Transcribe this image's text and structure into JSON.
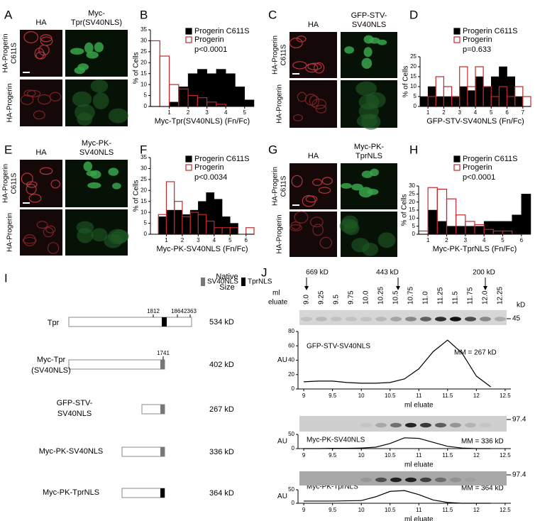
{
  "microscopy": [
    {
      "letter": "A",
      "columns": [
        [
          "HA"
        ],
        [
          "Myc-",
          "Tpr(SV40NLS)"
        ]
      ],
      "rows": [
        [
          "HA-Progerin",
          "C611S"
        ],
        [
          "HA-Progerin"
        ]
      ]
    },
    {
      "letter": "C",
      "columns": [
        [
          "HA"
        ],
        [
          "GFP-STV-",
          "SV40NLS"
        ]
      ],
      "rows": [
        [
          "HA-Progerin",
          "C611S"
        ],
        [
          "HA-Progerin"
        ]
      ]
    },
    {
      "letter": "E",
      "columns": [
        [
          "HA"
        ],
        [
          "Myc-PK-",
          "SV40NLS"
        ]
      ],
      "rows": [
        [
          "HA-Progerin",
          "C611S"
        ],
        [
          "HA-Progerin"
        ]
      ]
    },
    {
      "letter": "G",
      "columns": [
        [
          "HA"
        ],
        [
          "Myc-PK-",
          "TprNLS"
        ]
      ],
      "rows": [
        [
          "HA-Progerin",
          "C611S"
        ],
        [
          "HA-Progerin"
        ]
      ]
    }
  ],
  "diagram": {
    "letter": "I",
    "legend": [
      "SV40NLS",
      "TprNLS"
    ],
    "size_header": [
      "Native",
      "Size"
    ],
    "constructs": [
      {
        "name": [
          "Tpr"
        ],
        "size": "534 kD",
        "positions": [
          "1812",
          "1864",
          "2363"
        ]
      },
      {
        "name": [
          "Myc-Tpr",
          "(SV40NLS)"
        ],
        "size": "402 kD",
        "positions": [
          "1741"
        ]
      },
      {
        "name": [
          "GFP-STV-",
          "SV40NLS"
        ],
        "size": "267 kD",
        "positions": []
      },
      {
        "name": [
          "Myc-PK-SV40NLS"
        ],
        "size": "336 kD",
        "positions": []
      },
      {
        "name": [
          "Myc-PK-TprNLS"
        ],
        "size": "364 kD",
        "positions": []
      }
    ]
  },
  "gel": {
    "letter": "J",
    "markers": [
      "669 kD",
      "443 kD",
      "200 kD"
    ],
    "eluate_label": [
      "ml",
      "eluate"
    ],
    "fractions": [
      "9.0",
      "9.25",
      "9.5",
      "9.75",
      "10.0",
      "10.25",
      "10.5",
      "10.75",
      "11.0",
      "11.25",
      "11.5",
      "11.75",
      "12.0",
      "12.25"
    ],
    "unit": "kD",
    "sizes": [
      "45",
      "97.4",
      "97.4"
    ]
  },
  "chart_data": [
    {
      "type": "histogram",
      "panel": "B",
      "bins": [
        0,
        0.5,
        1,
        1.5,
        2,
        2.5,
        3,
        3.5,
        4,
        4.5,
        5,
        5.5
      ],
      "series": [
        {
          "name": "Progerin C611S",
          "color": "#000000",
          "fill": true,
          "values": [
            0,
            0,
            2,
            9,
            15,
            17,
            15,
            17,
            15,
            9,
            3
          ]
        },
        {
          "name": "Progerin",
          "color": "#c0282d",
          "fill": false,
          "values": [
            30,
            23,
            10,
            8,
            5,
            4,
            2,
            1,
            0,
            0,
            0
          ]
        }
      ],
      "annotation": "p<0.0001",
      "xlabel": "Myc-Tpr(SV40NLS) (Fn/Fc)",
      "ylabel": "% of Cells",
      "xlim": [
        0,
        5.5
      ],
      "xticks": [
        1,
        2,
        3,
        4,
        5
      ],
      "ylim": [
        0,
        35
      ],
      "yticks": [
        0,
        5,
        10,
        15,
        20,
        25,
        30,
        35
      ]
    },
    {
      "type": "histogram",
      "panel": "D",
      "bins": [
        0.5,
        1,
        1.5,
        2,
        2.5,
        3,
        3.5,
        4,
        4.5,
        5,
        5.5,
        6,
        6.5,
        7,
        7.5
      ],
      "series": [
        {
          "name": "Progerin C611S",
          "color": "#000000",
          "fill": true,
          "values": [
            5,
            10,
            5,
            5,
            5,
            10,
            8,
            15,
            10,
            15,
            20,
            15,
            5,
            0
          ]
        },
        {
          "name": "Progerin",
          "color": "#c0282d",
          "fill": false,
          "values": [
            0,
            5,
            15,
            10,
            5,
            20,
            10,
            20,
            10,
            5,
            10,
            5,
            10,
            5
          ]
        }
      ],
      "annotation": "p=0.633",
      "xlabel": "GFP-STV-SV40NLS (Fn/Fc)",
      "ylabel": "% of Cells",
      "xlim": [
        0.5,
        7.5
      ],
      "xticks": [
        1,
        2,
        3,
        4,
        5,
        6,
        7
      ],
      "ylim": [
        0,
        25
      ],
      "yticks": [
        0,
        5,
        10,
        15,
        20,
        25
      ]
    },
    {
      "type": "histogram",
      "panel": "F",
      "bins": [
        0,
        0.5,
        1,
        1.5,
        2,
        2.5,
        3,
        3.5,
        4,
        4.5,
        5,
        5.5,
        6,
        6.5
      ],
      "series": [
        {
          "name": "Progerin C611S",
          "color": "#000000",
          "fill": true,
          "values": [
            0,
            8,
            11,
            11,
            9,
            11,
            15,
            19,
            16,
            8,
            5,
            0,
            0
          ]
        },
        {
          "name": "Progerin",
          "color": "#c0282d",
          "fill": false,
          "values": [
            0,
            9,
            24,
            15,
            8,
            10,
            9,
            6,
            3,
            3,
            3,
            0,
            3
          ]
        }
      ],
      "annotation": "p<0.0034",
      "xlabel": "Myc-PK-SV40NLS (Fn/Fc)",
      "ylabel": "% of Cells",
      "xlim": [
        0,
        6.5
      ],
      "xticks": [
        1,
        2,
        3,
        4,
        5,
        6
      ],
      "ylim": [
        0,
        35
      ],
      "yticks": [
        0,
        5,
        10,
        15,
        20,
        25,
        30,
        35
      ]
    },
    {
      "type": "histogram",
      "panel": "H",
      "bins": [
        0.5,
        1,
        1.5,
        2,
        2.5,
        3,
        3.5,
        4,
        4.5,
        5,
        5.5,
        6,
        6.5
      ],
      "series": [
        {
          "name": "Progerin C611S",
          "color": "#000000",
          "fill": true,
          "values": [
            0,
            15,
            8,
            5,
            5,
            5,
            5,
            8,
            8,
            8,
            12,
            25
          ]
        },
        {
          "name": "Progerin",
          "color": "#c0282d",
          "fill": false,
          "values": [
            2,
            29,
            28,
            22,
            12,
            8,
            6,
            3,
            2,
            2,
            0,
            0
          ]
        }
      ],
      "annotation": "p<0.0001",
      "xlabel": "Myc-PK-TprNLS (Fn/Fc)",
      "ylabel": "% of Cells",
      "xlim": [
        0.5,
        6.5
      ],
      "xticks": [
        1,
        2,
        3,
        4,
        5,
        6
      ],
      "ylim": [
        0,
        30
      ],
      "yticks": [
        0,
        5,
        10,
        15,
        20,
        25,
        30
      ]
    },
    {
      "type": "line",
      "x": [
        9,
        9.25,
        9.5,
        9.75,
        10,
        10.25,
        10.5,
        10.75,
        11,
        11.25,
        11.5,
        11.75,
        12,
        12.25
      ],
      "series": [
        {
          "name": "GFP-STV-SV40NLS",
          "color": "#000000",
          "values": [
            10,
            11,
            11,
            9,
            8,
            8,
            9,
            14,
            28,
            52,
            68,
            50,
            18,
            3
          ]
        }
      ],
      "annotation": "MM = 267 kD",
      "xlabel": "ml eluate",
      "ylabel": "AU",
      "xlim": [
        8.9,
        12.6
      ],
      "xticks": [
        9,
        9.5,
        10,
        10.5,
        11,
        11.5,
        12,
        12.5
      ],
      "ylim": [
        0,
        80
      ],
      "yticks": [
        0,
        20,
        40,
        60,
        80
      ]
    },
    {
      "type": "line",
      "x": [
        9,
        9.25,
        9.5,
        9.75,
        10,
        10.25,
        10.5,
        10.75,
        11,
        11.25,
        11.5,
        11.75,
        12,
        12.25
      ],
      "series": [
        {
          "name": "Myc-PK-SV40NLS",
          "color": "#000000",
          "values": [
            0,
            0,
            1,
            1,
            2,
            5,
            18,
            38,
            36,
            22,
            8,
            2,
            0,
            0
          ]
        }
      ],
      "annotation": "MM = 336 kD",
      "xlabel": "ml eluate",
      "ylabel": "AU",
      "xlim": [
        8.9,
        12.6
      ],
      "xticks": [
        9,
        9.5,
        10,
        10.5,
        11,
        11.5,
        12,
        12.5
      ],
      "ylim": [
        0,
        50
      ],
      "yticks": [
        0,
        50
      ]
    },
    {
      "type": "line",
      "x": [
        9,
        9.25,
        9.5,
        9.75,
        10,
        10.25,
        10.5,
        10.75,
        11,
        11.25,
        11.5,
        11.75,
        12,
        12.25
      ],
      "series": [
        {
          "name": "Myc-PK-TprNLS",
          "color": "#000000",
          "values": [
            8,
            8,
            8,
            9,
            10,
            24,
            44,
            47,
            32,
            12,
            3,
            0,
            0,
            0
          ]
        }
      ],
      "annotation": "MM = 364 kD",
      "xlabel": "ml eluate",
      "ylabel": "AU",
      "xlim": [
        8.9,
        12.6
      ],
      "xticks": [
        9,
        9.5,
        10,
        10.5,
        11,
        11.5,
        12,
        12.5
      ],
      "ylim": [
        0,
        50
      ],
      "yticks": [
        0,
        50
      ]
    }
  ]
}
